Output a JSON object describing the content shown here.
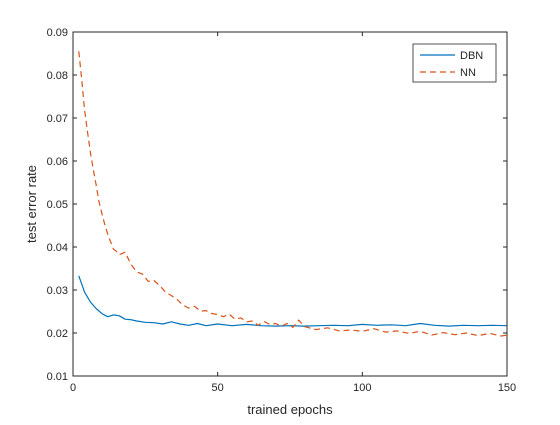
{
  "chart_data": {
    "type": "line",
    "title": "",
    "xlabel": "trained epochs",
    "ylabel": "test error rate",
    "xlim": [
      0,
      150
    ],
    "ylim": [
      0.01,
      0.09
    ],
    "xticks": [
      0,
      50,
      100,
      150
    ],
    "yticks": [
      0.01,
      0.02,
      0.03,
      0.04,
      0.05,
      0.06,
      0.07,
      0.08,
      0.09
    ],
    "xtick_labels": [
      "0",
      "50",
      "100",
      "150"
    ],
    "ytick_labels": [
      "0.01",
      "0.02",
      "0.03",
      "0.04",
      "0.05",
      "0.06",
      "0.07",
      "0.08",
      "0.09"
    ],
    "grid": false,
    "legend_position": "top-right",
    "series": [
      {
        "name": "DBN",
        "color": "#0072BD",
        "dash": "solid",
        "x": [
          2,
          4,
          6,
          8,
          10,
          12,
          14,
          16,
          18,
          20,
          22,
          25,
          28,
          31,
          34,
          37,
          40,
          43,
          46,
          50,
          55,
          60,
          65,
          70,
          75,
          80,
          85,
          90,
          95,
          100,
          105,
          110,
          115,
          120,
          125,
          130,
          135,
          140,
          145,
          150
        ],
        "y": [
          0.0333,
          0.0295,
          0.0272,
          0.0257,
          0.0245,
          0.0238,
          0.0242,
          0.024,
          0.0232,
          0.0231,
          0.0228,
          0.0225,
          0.0224,
          0.0221,
          0.0226,
          0.0221,
          0.0218,
          0.0222,
          0.0217,
          0.0221,
          0.0217,
          0.022,
          0.0217,
          0.0216,
          0.0217,
          0.0216,
          0.0217,
          0.0218,
          0.0217,
          0.022,
          0.0218,
          0.0219,
          0.0217,
          0.0222,
          0.0218,
          0.0216,
          0.0218,
          0.0217,
          0.0218,
          0.0217
        ]
      },
      {
        "name": "NN",
        "color": "#D95319",
        "dash": "dashed",
        "x": [
          2,
          3,
          4,
          5,
          6,
          7,
          8,
          9,
          10,
          11,
          12,
          13,
          14,
          15,
          16,
          18,
          20,
          22,
          24,
          26,
          28,
          30,
          32,
          34,
          36,
          38,
          40,
          42,
          44,
          46,
          48,
          50,
          52,
          54,
          56,
          58,
          60,
          62,
          64,
          66,
          68,
          70,
          72,
          74,
          76,
          78,
          80,
          84,
          88,
          92,
          96,
          100,
          104,
          108,
          112,
          116,
          120,
          124,
          128,
          132,
          136,
          140,
          144,
          148,
          150
        ],
        "y": [
          0.0855,
          0.079,
          0.0718,
          0.0668,
          0.062,
          0.058,
          0.0545,
          0.0505,
          0.0478,
          0.0452,
          0.043,
          0.0412,
          0.0395,
          0.039,
          0.0382,
          0.0388,
          0.036,
          0.0342,
          0.0337,
          0.032,
          0.0322,
          0.031,
          0.0295,
          0.0287,
          0.0278,
          0.0265,
          0.0258,
          0.0262,
          0.0251,
          0.0252,
          0.0245,
          0.0243,
          0.0238,
          0.0244,
          0.0232,
          0.0235,
          0.0226,
          0.0228,
          0.0218,
          0.0227,
          0.022,
          0.0222,
          0.0216,
          0.0222,
          0.0213,
          0.023,
          0.0215,
          0.0208,
          0.0212,
          0.0205,
          0.0207,
          0.0204,
          0.021,
          0.0202,
          0.0205,
          0.0199,
          0.0204,
          0.0195,
          0.0201,
          0.0196,
          0.02,
          0.0194,
          0.0199,
          0.0193,
          0.0195
        ]
      }
    ]
  }
}
